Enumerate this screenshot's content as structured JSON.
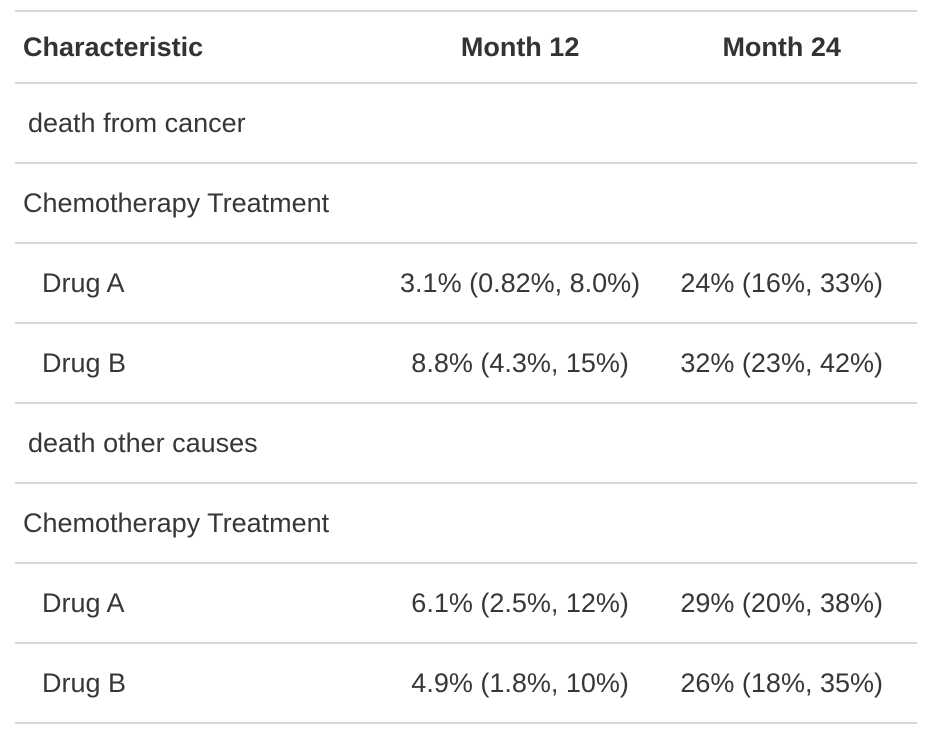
{
  "colors": {
    "text": "#373737",
    "header_text": "#333333",
    "border": "#d6d6d6",
    "background": "#ffffff"
  },
  "table": {
    "header": {
      "characteristic": "Characteristic",
      "month12": "Month 12",
      "month24": "Month 24"
    },
    "rows": [
      {
        "label": "death from cancer",
        "month12": "",
        "month24": ""
      },
      {
        "label": "Chemotherapy Treatment",
        "month12": "",
        "month24": ""
      },
      {
        "label": "Drug A",
        "month12": "3.1% (0.82%, 8.0%)",
        "month24": "24% (16%, 33%)"
      },
      {
        "label": "Drug B",
        "month12": "8.8% (4.3%, 15%)",
        "month24": "32% (23%, 42%)"
      },
      {
        "label": "death other causes",
        "month12": "",
        "month24": ""
      },
      {
        "label": "Chemotherapy Treatment",
        "month12": "",
        "month24": ""
      },
      {
        "label": "Drug A",
        "month12": "6.1% (2.5%, 12%)",
        "month24": "29% (20%, 38%)"
      },
      {
        "label": "Drug B",
        "month12": "4.9% (1.8%, 10%)",
        "month24": "26% (18%, 35%)"
      }
    ]
  },
  "chart_data": {
    "type": "table",
    "columns": [
      "Characteristic",
      "Month 12",
      "Month 24"
    ],
    "rows": [
      [
        "death from cancer",
        "",
        ""
      ],
      [
        "Chemotherapy Treatment",
        "",
        ""
      ],
      [
        "Drug A",
        "3.1% (0.82%, 8.0%)",
        "24% (16%, 33%)"
      ],
      [
        "Drug B",
        "8.8% (4.3%, 15%)",
        "32% (23%, 42%)"
      ],
      [
        "death other causes",
        "",
        ""
      ],
      [
        "Chemotherapy Treatment",
        "",
        ""
      ],
      [
        "Drug A",
        "6.1% (2.5%, 12%)",
        "29% (20%, 38%)"
      ],
      [
        "Drug B",
        "4.9% (1.8%, 10%)",
        "26% (18%, 35%)"
      ]
    ]
  }
}
